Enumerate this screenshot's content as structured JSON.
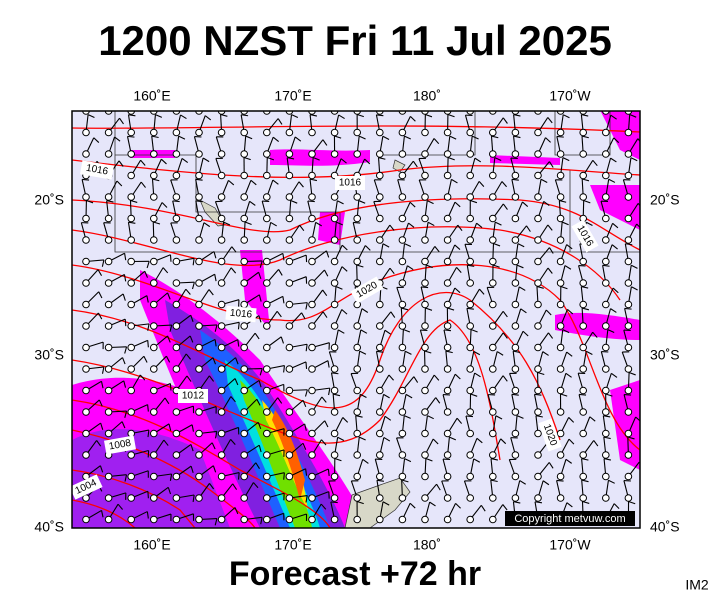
{
  "header": {
    "title": "1200 NZST Fri 11 Jul 2025"
  },
  "map": {
    "top_labels": [
      "160˚E",
      "170˚E",
      "180˚",
      "170˚W"
    ],
    "bottom_labels": [
      "160˚E",
      "170˚E",
      "180˚",
      "170˚W"
    ],
    "left_labels": [
      "20˚S",
      "30˚S",
      "40˚S"
    ],
    "right_labels": [
      "20˚S",
      "30˚S",
      "40˚S"
    ],
    "isobar_labels": [
      "1016",
      "1016",
      "1016",
      "1020",
      "1016",
      "1012",
      "1008",
      "1004",
      "1020"
    ],
    "copyright": "Copyright metvuw.com"
  },
  "footer": {
    "forecast": "Forecast +72 hr",
    "code": "IM2"
  }
}
